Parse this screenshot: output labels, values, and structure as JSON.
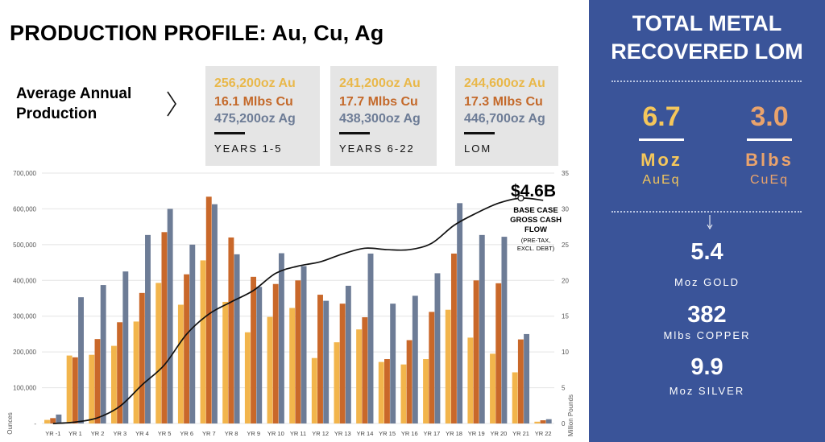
{
  "title": "PRODUCTION PROFILE: Au, Cu, Ag",
  "average_annual": {
    "label_line1": "Average Annual",
    "label_line2": "Production",
    "boxes": [
      {
        "au": "256,200oz Au",
        "cu": "16.1 Mlbs Cu",
        "ag": "475,200oz Ag",
        "period": "YEARS 1-5"
      },
      {
        "au": "241,200oz Au",
        "cu": "17.7 Mlbs Cu",
        "ag": "438,300oz Ag",
        "period": "YEARS 6-22"
      },
      {
        "au": "244,600oz Au",
        "cu": "17.3 Mlbs Cu",
        "ag": "446,700oz Ag",
        "period": "LOM"
      }
    ]
  },
  "colors": {
    "au": "#f2b54c",
    "cu": "#c9682a",
    "ag": "#6d7c96",
    "panel": "#3a5499",
    "panel_au": "#f5c75b",
    "panel_cu": "#e9a36c"
  },
  "chart_data": {
    "type": "bar",
    "categories": [
      "YR -1",
      "YR 1",
      "YR 2",
      "YR 3",
      "YR 4",
      "YR 5",
      "YR 6",
      "YR 7",
      "YR 8",
      "YR 9",
      "YR 10",
      "YR 11",
      "YR 12",
      "YR 13",
      "YR 14",
      "YR 15",
      "YR 16",
      "YR 17",
      "YR 18",
      "YR 19",
      "YR 20",
      "YR 21",
      "YR 22"
    ],
    "series": [
      {
        "key": "au",
        "axis": "left",
        "values": [
          10000,
          190000,
          192000,
          217000,
          285000,
          393000,
          332000,
          456000,
          340000,
          255000,
          298000,
          323000,
          183000,
          227000,
          263000,
          172000,
          165000,
          180000,
          318000,
          240000,
          195000,
          143000,
          5000
        ]
      },
      {
        "key": "cu",
        "axis": "left",
        "values": [
          15000,
          185000,
          236000,
          283000,
          365000,
          535000,
          417000,
          634000,
          520000,
          410000,
          390000,
          400000,
          360000,
          335000,
          297000,
          180000,
          233000,
          312000,
          475000,
          400000,
          392000,
          235000,
          9000
        ]
      },
      {
        "key": "ag",
        "axis": "left",
        "values": [
          25000,
          353000,
          387000,
          425000,
          527000,
          600000,
          500000,
          613000,
          473000,
          382000,
          476000,
          440000,
          343000,
          385000,
          475000,
          335000,
          357000,
          420000,
          616000,
          527000,
          522000,
          250000,
          12000
        ]
      },
      {
        "key": "cash_flow",
        "type": "line",
        "axis": "right",
        "values": [
          0,
          0.2,
          0.8,
          2.4,
          5.4,
          8.2,
          12.5,
          15.3,
          17,
          18.6,
          21,
          22,
          22.6,
          23.7,
          24.5,
          24.3,
          24.3,
          25.2,
          27.7,
          29.4,
          30.8,
          31.5,
          31.2
        ]
      }
    ],
    "yticks_left": [
      "-",
      "100,000",
      "200,000",
      "300,000",
      "400,000",
      "500,000",
      "600,000",
      "700,000"
    ],
    "ylim_left": [
      0,
      700000
    ],
    "ylabel_left": "Ounces",
    "yticks_right": [
      "0",
      "5",
      "10",
      "15",
      "20",
      "25",
      "30",
      "35"
    ],
    "ylim_right": [
      0,
      35
    ],
    "ylabel_right": "Million Pounds",
    "annotation": {
      "value": "$4.6B",
      "line1": "BASE CASE",
      "line2": "GROSS CASH",
      "line3": "FLOW",
      "line4": "(PRE-TAX,",
      "line5": "EXCL. DEBT)"
    }
  },
  "panel": {
    "title_line1": "TOTAL METAL",
    "title_line2": "RECOVERED LOM",
    "gold_eq_value": "6.7",
    "gold_eq_unit": "Moz",
    "gold_eq_label": "AuEq",
    "copper_eq_value": "3.0",
    "copper_eq_unit": "Blbs",
    "copper_eq_label": "CuEq",
    "items": [
      {
        "value": "5.4",
        "label": "Moz GOLD"
      },
      {
        "value": "382",
        "label": "Mlbs COPPER"
      },
      {
        "value": "9.9",
        "label": "Moz SILVER"
      }
    ]
  }
}
